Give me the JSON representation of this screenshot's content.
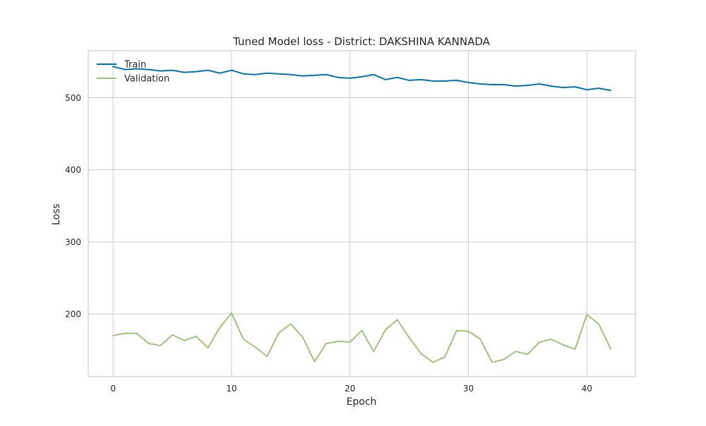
{
  "chart_data": {
    "type": "line",
    "title": "Tuned Model loss - District: DAKSHINA KANNADA",
    "xlabel": "Epoch",
    "ylabel": "Loss",
    "xlim": [
      -2.1,
      44.1
    ],
    "ylim": [
      113,
      565
    ],
    "xticks": [
      0,
      10,
      20,
      30,
      40
    ],
    "yticks": [
      200,
      300,
      400,
      500
    ],
    "grid": true,
    "legend_position": "top-left",
    "x": [
      0,
      1,
      2,
      3,
      4,
      5,
      6,
      7,
      8,
      9,
      10,
      11,
      12,
      13,
      14,
      15,
      16,
      17,
      18,
      19,
      20,
      21,
      22,
      23,
      24,
      25,
      26,
      27,
      28,
      29,
      30,
      31,
      32,
      33,
      34,
      35,
      36,
      37,
      38,
      39,
      40,
      41,
      42
    ],
    "series": [
      {
        "name": "Train",
        "color": "#0173b2",
        "values": [
          543,
          539,
          540,
          539,
          537,
          538,
          535,
          536,
          538,
          534,
          538,
          533,
          532,
          534,
          533,
          532,
          530,
          531,
          532,
          528,
          527,
          529,
          532,
          525,
          528,
          524,
          525,
          523,
          523,
          524,
          521,
          519,
          518,
          518,
          516,
          517,
          519,
          516,
          514,
          515,
          511,
          513,
          510
        ]
      },
      {
        "name": "Validation",
        "color": "#9dc37d",
        "values": [
          170,
          173,
          173,
          159,
          156,
          171,
          163,
          169,
          153,
          181,
          201,
          165,
          154,
          141,
          174,
          186,
          168,
          134,
          159,
          162,
          161,
          177,
          148,
          178,
          192,
          167,
          145,
          133,
          140,
          177,
          176,
          165,
          133,
          137,
          148,
          144,
          161,
          165,
          157,
          151,
          199,
          186,
          152
        ]
      }
    ]
  }
}
